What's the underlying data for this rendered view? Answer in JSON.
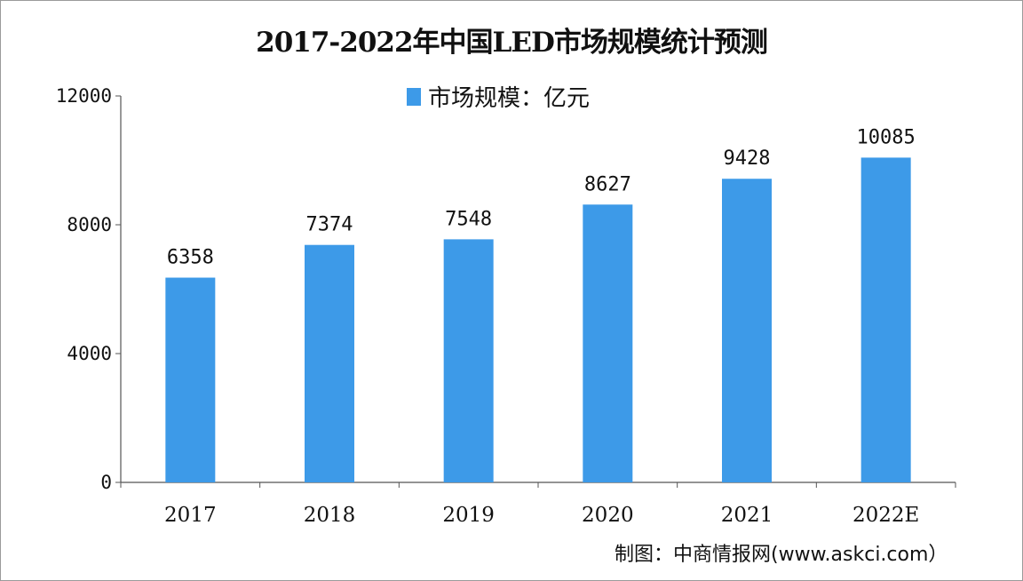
{
  "chart_data": {
    "type": "bar",
    "title": "2017-2022年中国LED市场规模统计预测",
    "categories": [
      "2017",
      "2018",
      "2019",
      "2020",
      "2021",
      "2022E"
    ],
    "series": [
      {
        "name": "市场规模：亿元",
        "values": [
          6358,
          7374,
          7548,
          8627,
          9428,
          10085
        ]
      }
    ],
    "ylim": [
      0,
      12000
    ],
    "yticks": [
      0,
      4000,
      8000,
      12000
    ],
    "grid": false,
    "legend_position": "top-center",
    "bar_color": "#3d9ae8",
    "xlabel": "",
    "ylabel": ""
  },
  "source": "制图：中商情报网(www.askci.com）"
}
